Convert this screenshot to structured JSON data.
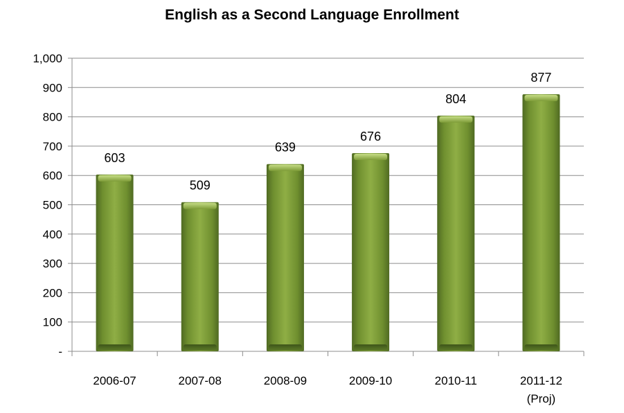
{
  "chart_data": {
    "type": "bar",
    "title": "English as a Second Language Enrollment",
    "categories": [
      [
        "2006-07"
      ],
      [
        "2007-08"
      ],
      [
        "2008-09"
      ],
      [
        "2009-10"
      ],
      [
        "2010-11"
      ],
      [
        "2011-12",
        "(Proj)"
      ]
    ],
    "values": [
      603,
      509,
      639,
      676,
      804,
      877
    ],
    "ylim": [
      0,
      1000
    ],
    "yticks": [
      0,
      100,
      200,
      300,
      400,
      500,
      600,
      700,
      800,
      900,
      1000
    ],
    "ytick_labels": [
      "-",
      "100",
      "200",
      "300",
      "400",
      "500",
      "600",
      "700",
      "800",
      "900",
      "1,000"
    ],
    "grid": true,
    "legend": "none",
    "bar_color": "#6f8f2f",
    "bar_highlight": "#a6c45a",
    "bar_shadow": "#4a6420",
    "grid_color": "#8c8c8c"
  }
}
